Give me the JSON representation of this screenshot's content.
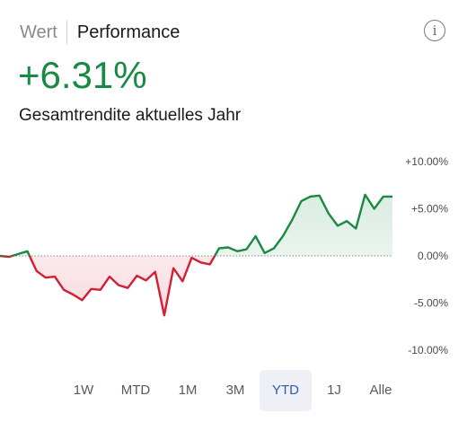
{
  "header": {
    "tabs": [
      {
        "label": "Wert"
      },
      {
        "label": "Performance"
      }
    ],
    "info_icon": "info-icon"
  },
  "summary": {
    "value": "+6.31%",
    "label": "Gesamtrendite aktuelles Jahr",
    "positive_color": "#188a44",
    "negative_color": "#d21f34"
  },
  "chart_data": {
    "type": "line",
    "title": "",
    "y_ticks": [
      "+10.00%",
      "+5.00%",
      "0.00%",
      "-5.00%",
      "-10.00%"
    ],
    "ylim": [
      -10,
      10
    ],
    "baseline": 0,
    "grid": false,
    "series": [
      {
        "values": [
          0.0,
          -0.1,
          0.2,
          0.5,
          -1.6,
          -2.3,
          -2.2,
          -3.6,
          -4.1,
          -4.7,
          -3.5,
          -3.6,
          -2.2,
          -3.1,
          -3.4,
          -2.1,
          -2.6,
          -1.7,
          -6.3,
          -1.3,
          -2.7,
          -0.2,
          -0.7,
          -0.9,
          0.8,
          0.9,
          0.5,
          0.7,
          2.1,
          0.3,
          0.8,
          2.1,
          3.8,
          5.8,
          6.3,
          6.4,
          4.5,
          3.2,
          3.7,
          2.9,
          6.5,
          5.0,
          6.3,
          6.3
        ]
      }
    ]
  },
  "ranges": {
    "options": [
      "1W",
      "MTD",
      "1M",
      "3M",
      "YTD",
      "1J",
      "Alle"
    ],
    "selected": "YTD"
  }
}
